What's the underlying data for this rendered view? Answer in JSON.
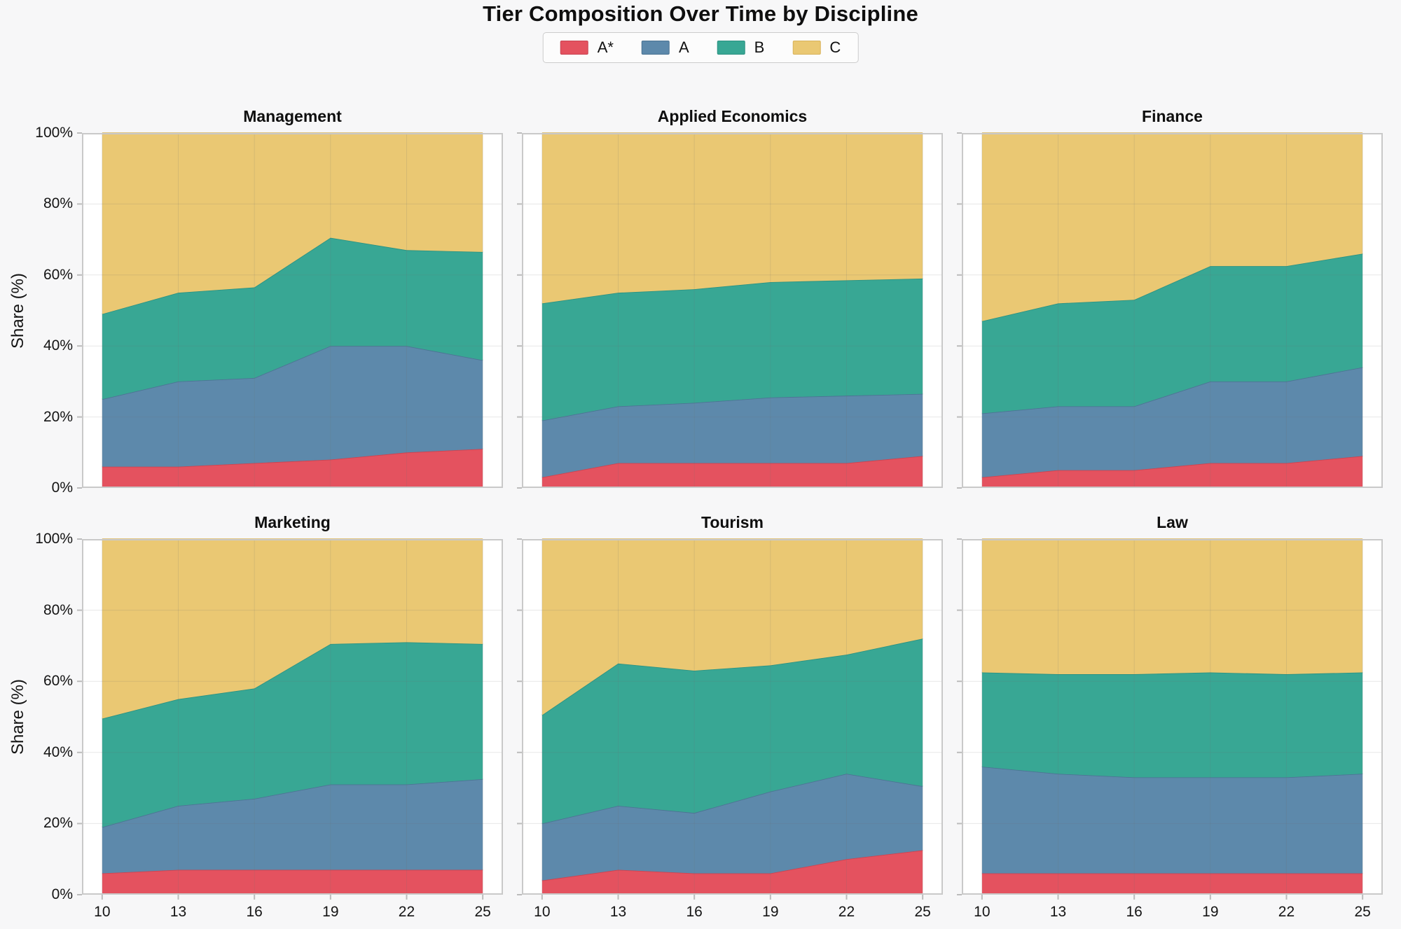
{
  "page": {
    "title": "Tier Composition Over Time by Discipline",
    "ylabel": "Share (%)"
  },
  "legend": [
    {
      "label": "A*",
      "color": "#e4525f",
      "edge": "#c8414f"
    },
    {
      "label": "A",
      "color": "#5d89ab",
      "edge": "#497291"
    },
    {
      "label": "B",
      "color": "#38a794",
      "edge": "#2a9080"
    },
    {
      "label": "C",
      "color": "#eac873",
      "edge": "#d8b259"
    }
  ],
  "axes": {
    "x_ticks": [
      "10",
      "13",
      "16",
      "19",
      "22",
      "25"
    ],
    "y_ticks": [
      "0%",
      "20%",
      "40%",
      "60%",
      "80%",
      "100%"
    ],
    "grid": true,
    "plot_background": "#ffffff",
    "figure_background": "#f7f7f8",
    "spine_color": "#c9c9c9"
  },
  "chart_data": [
    {
      "type": "area",
      "stacked": true,
      "title": "Management",
      "x": [
        10,
        13,
        16,
        19,
        22,
        25
      ],
      "ylim": [
        0,
        100
      ],
      "unit": "%",
      "series": [
        {
          "name": "A*",
          "values": [
            6,
            6,
            7,
            8,
            10,
            11
          ]
        },
        {
          "name": "A",
          "values": [
            19,
            24,
            24,
            32,
            30,
            25
          ]
        },
        {
          "name": "B",
          "values": [
            24,
            25,
            25.5,
            30.5,
            27,
            30.5
          ]
        },
        {
          "name": "C",
          "values": [
            51,
            45,
            43.5,
            29.5,
            33,
            33.5
          ]
        }
      ]
    },
    {
      "type": "area",
      "stacked": true,
      "title": "Applied Economics",
      "x": [
        10,
        13,
        16,
        19,
        22,
        25
      ],
      "ylim": [
        0,
        100
      ],
      "unit": "%",
      "series": [
        {
          "name": "A*",
          "values": [
            3,
            7,
            7,
            7,
            7,
            9
          ]
        },
        {
          "name": "A",
          "values": [
            16,
            16,
            17,
            18.5,
            19,
            17.5
          ]
        },
        {
          "name": "B",
          "values": [
            33,
            32,
            32,
            32.5,
            32.5,
            32.5
          ]
        },
        {
          "name": "C",
          "values": [
            48,
            45,
            44,
            42,
            41.5,
            41
          ]
        }
      ]
    },
    {
      "type": "area",
      "stacked": true,
      "title": "Finance",
      "x": [
        10,
        13,
        16,
        19,
        22,
        25
      ],
      "ylim": [
        0,
        100
      ],
      "unit": "%",
      "series": [
        {
          "name": "A*",
          "values": [
            3,
            5,
            5,
            7,
            7,
            9
          ]
        },
        {
          "name": "A",
          "values": [
            18,
            18,
            18,
            23,
            23,
            25
          ]
        },
        {
          "name": "B",
          "values": [
            26,
            29,
            30,
            32.5,
            32.5,
            32
          ]
        },
        {
          "name": "C",
          "values": [
            53,
            48,
            47,
            37.5,
            37.5,
            34
          ]
        }
      ]
    },
    {
      "type": "area",
      "stacked": true,
      "title": "Marketing",
      "x": [
        10,
        13,
        16,
        19,
        22,
        25
      ],
      "ylim": [
        0,
        100
      ],
      "unit": "%",
      "series": [
        {
          "name": "A*",
          "values": [
            6,
            7,
            7,
            7,
            7,
            7
          ]
        },
        {
          "name": "A",
          "values": [
            13,
            18,
            20,
            24,
            24,
            25.5
          ]
        },
        {
          "name": "B",
          "values": [
            30.5,
            30,
            31,
            39.5,
            40,
            38
          ]
        },
        {
          "name": "C",
          "values": [
            50.5,
            45,
            42,
            29.5,
            29,
            29.5
          ]
        }
      ]
    },
    {
      "type": "area",
      "stacked": true,
      "title": "Tourism",
      "x": [
        10,
        13,
        16,
        19,
        22,
        25
      ],
      "ylim": [
        0,
        100
      ],
      "unit": "%",
      "series": [
        {
          "name": "A*",
          "values": [
            4,
            7,
            6,
            6,
            10,
            12.5
          ]
        },
        {
          "name": "A",
          "values": [
            16,
            18,
            17,
            23,
            24,
            18
          ]
        },
        {
          "name": "B",
          "values": [
            30.5,
            40,
            40,
            35.5,
            33.5,
            41.5
          ]
        },
        {
          "name": "C",
          "values": [
            49.5,
            35,
            37,
            35.5,
            32.5,
            28
          ]
        }
      ]
    },
    {
      "type": "area",
      "stacked": true,
      "title": "Law",
      "x": [
        10,
        13,
        16,
        19,
        22,
        25
      ],
      "ylim": [
        0,
        100
      ],
      "unit": "%",
      "series": [
        {
          "name": "A*",
          "values": [
            6,
            6,
            6,
            6,
            6,
            6
          ]
        },
        {
          "name": "A",
          "values": [
            30,
            28,
            27,
            27,
            27,
            28
          ]
        },
        {
          "name": "B",
          "values": [
            26.5,
            28,
            29,
            29.5,
            29,
            28.5
          ]
        },
        {
          "name": "C",
          "values": [
            37.5,
            38,
            38,
            37.5,
            38,
            37.5
          ]
        }
      ]
    }
  ]
}
